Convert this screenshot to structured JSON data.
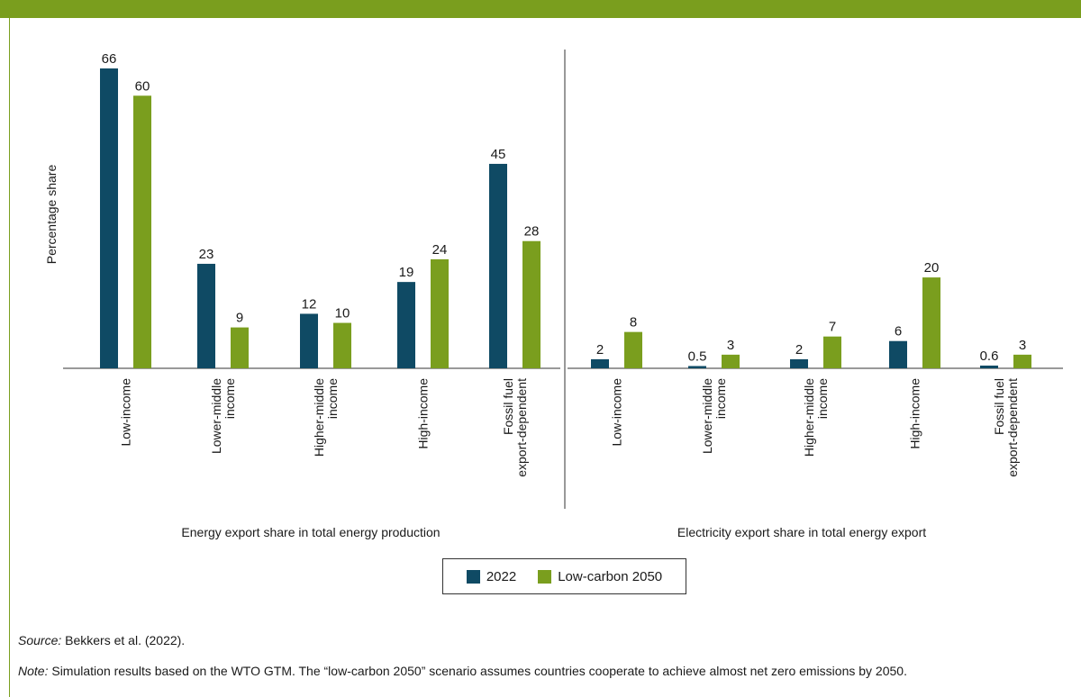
{
  "colors": {
    "band": "#7a9e1e",
    "series_2022": "#0f4a64",
    "series_2050": "#7a9e1e"
  },
  "chart_data": {
    "type": "bar",
    "ylabel": "Percentage share",
    "ylim": [
      0,
      70
    ],
    "series_names": [
      "2022",
      "Low-carbon 2050"
    ],
    "panels": [
      {
        "title": "Energy export share in total energy production",
        "categories": [
          [
            "Low-income"
          ],
          [
            "Lower-middle",
            "income"
          ],
          [
            "Higher-middle",
            "income"
          ],
          [
            "High-income"
          ],
          [
            "Fossil fuel",
            "export-dependent"
          ]
        ],
        "series": [
          {
            "name": "2022",
            "values": [
              66,
              23,
              12,
              19,
              45
            ],
            "labels": [
              "66",
              "23",
              "12",
              "19",
              "45"
            ]
          },
          {
            "name": "Low-carbon 2050",
            "values": [
              60,
              9,
              10,
              24,
              28
            ],
            "labels": [
              "60",
              "9",
              "10",
              "24",
              "28"
            ]
          }
        ]
      },
      {
        "title": "Electricity export share in total energy export",
        "categories": [
          [
            "Low-income"
          ],
          [
            "Lower-middle",
            "income"
          ],
          [
            "Higher-middle",
            "income"
          ],
          [
            "High-income"
          ],
          [
            "Fossil fuel",
            "export-dependent"
          ]
        ],
        "series": [
          {
            "name": "2022",
            "values": [
              2,
              0.5,
              2,
              6,
              0.6
            ],
            "labels": [
              "2",
              "0.5",
              "2",
              "6",
              "0.6"
            ]
          },
          {
            "name": "Low-carbon 2050",
            "values": [
              8,
              3,
              7,
              20,
              3
            ],
            "labels": [
              "8",
              "3",
              "7",
              "20",
              "3"
            ]
          }
        ]
      }
    ]
  },
  "legend": {
    "item_2022": "2022",
    "item_2050": "Low-carbon 2050"
  },
  "footnotes": {
    "source_label": "Source:",
    "source_text": " Bekkers et al. (2022).",
    "note_label": "Note:",
    "note_text": " Simulation results based on the WTO GTM. The “low-carbon 2050” scenario assumes countries cooperate to achieve almost net zero emissions by 2050."
  }
}
